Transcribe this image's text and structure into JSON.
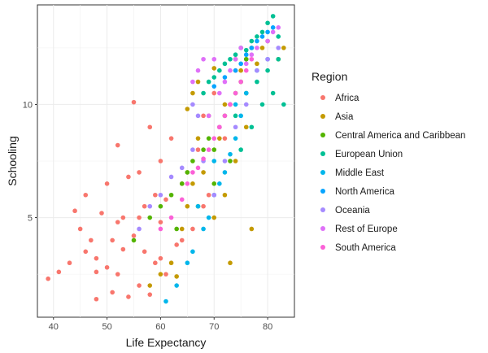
{
  "chart_data": {
    "type": "scatter",
    "xlabel": "Life Expectancy",
    "ylabel": "Schooling",
    "xlim": [
      37,
      85
    ],
    "ylim": [
      0.6,
      14.4
    ],
    "xticks": [
      40,
      50,
      60,
      70,
      80
    ],
    "yticks": [
      5,
      10
    ],
    "grid": true,
    "legend": {
      "title": "Region",
      "position": "right"
    },
    "series": [
      {
        "name": "Africa",
        "color": "#F8766D",
        "points": [
          [
            39,
            2.3
          ],
          [
            41,
            2.6
          ],
          [
            43,
            3.0
          ],
          [
            44,
            5.3
          ],
          [
            45,
            4.5
          ],
          [
            46,
            6.0
          ],
          [
            46,
            3.5
          ],
          [
            47,
            4.0
          ],
          [
            48,
            3.2
          ],
          [
            48,
            1.4
          ],
          [
            49,
            5.2
          ],
          [
            50,
            2.8
          ],
          [
            50,
            6.5
          ],
          [
            51,
            4.0
          ],
          [
            51,
            1.7
          ],
          [
            52,
            8.2
          ],
          [
            52,
            2.5
          ],
          [
            53,
            5.0
          ],
          [
            53,
            3.6
          ],
          [
            54,
            1.5
          ],
          [
            54,
            6.8
          ],
          [
            55,
            10.1
          ],
          [
            55,
            4.2
          ],
          [
            56,
            2.0
          ],
          [
            56,
            7.0
          ],
          [
            57,
            3.5
          ],
          [
            57,
            5.5
          ],
          [
            58,
            9.0
          ],
          [
            58,
            1.6
          ],
          [
            59,
            6.0
          ],
          [
            59,
            3.0
          ],
          [
            60,
            4.8
          ],
          [
            60,
            7.5
          ],
          [
            61,
            2.5
          ],
          [
            61,
            5.8
          ],
          [
            62,
            8.5
          ],
          [
            63,
            3.8
          ],
          [
            64,
            6.5
          ],
          [
            65,
            7.0
          ],
          [
            66,
            4.5
          ],
          [
            67,
            8.0
          ],
          [
            68,
            9.5
          ],
          [
            69,
            6.0
          ],
          [
            70,
            10.5
          ],
          [
            72,
            8.5
          ],
          [
            74,
            11.5
          ],
          [
            76,
            12.0
          ],
          [
            48,
            2.6
          ],
          [
            52,
            4.8
          ],
          [
            56,
            5.0
          ],
          [
            60,
            3.2
          ],
          [
            64,
            4.0
          ],
          [
            68,
            5.5
          ]
        ]
      },
      {
        "name": "Asia",
        "color": "#C49A00",
        "points": [
          [
            58,
            2.0
          ],
          [
            60,
            2.5
          ],
          [
            62,
            3.0
          ],
          [
            63,
            2.4
          ],
          [
            64,
            4.5
          ],
          [
            65,
            5.5
          ],
          [
            66,
            6.5
          ],
          [
            66,
            10.5
          ],
          [
            67,
            11.0
          ],
          [
            68,
            7.0
          ],
          [
            69,
            9.5
          ],
          [
            70,
            11.6
          ],
          [
            71,
            8.5
          ],
          [
            72,
            10.0
          ],
          [
            73,
            3.0
          ],
          [
            74,
            12.0
          ],
          [
            75,
            11.5
          ],
          [
            76,
            10.5
          ],
          [
            77,
            4.5
          ],
          [
            78,
            11.8
          ],
          [
            79,
            12.5
          ],
          [
            80,
            12.8
          ],
          [
            82,
            12.0
          ],
          [
            83,
            12.5
          ],
          [
            70,
            5.0
          ],
          [
            72,
            6.0
          ],
          [
            74,
            7.5
          ],
          [
            76,
            9.0
          ],
          [
            67,
            8.5
          ],
          [
            65,
            9.8
          ]
        ]
      },
      {
        "name": "Central America and Caribbean",
        "color": "#53B400",
        "points": [
          [
            55,
            4.0
          ],
          [
            58,
            5.0
          ],
          [
            60,
            5.5
          ],
          [
            62,
            6.0
          ],
          [
            64,
            6.5
          ],
          [
            65,
            7.0
          ],
          [
            66,
            7.5
          ],
          [
            68,
            8.0
          ],
          [
            69,
            8.5
          ],
          [
            70,
            8.0
          ],
          [
            71,
            9.0
          ],
          [
            72,
            9.5
          ],
          [
            73,
            10.0
          ],
          [
            74,
            10.5
          ],
          [
            75,
            11.0
          ],
          [
            76,
            12.0
          ],
          [
            77,
            12.5
          ],
          [
            63,
            4.5
          ],
          [
            67,
            5.5
          ],
          [
            70,
            6.5
          ],
          [
            73,
            7.5
          ]
        ]
      },
      {
        "name": "European Union",
        "color": "#00C094",
        "points": [
          [
            68,
            10.5
          ],
          [
            69,
            11.0
          ],
          [
            70,
            11.2
          ],
          [
            71,
            11.5
          ],
          [
            72,
            11.8
          ],
          [
            73,
            12.0
          ],
          [
            74,
            12.2
          ],
          [
            75,
            12.5
          ],
          [
            76,
            12.4
          ],
          [
            77,
            12.8
          ],
          [
            78,
            13.0
          ],
          [
            79,
            13.2
          ],
          [
            80,
            13.6
          ],
          [
            81,
            13.9
          ],
          [
            82,
            13.0
          ],
          [
            74,
            9.5
          ],
          [
            76,
            10.5
          ],
          [
            78,
            11.0
          ],
          [
            80,
            11.5
          ],
          [
            82,
            12.0
          ],
          [
            77,
            9.0
          ],
          [
            79,
            10.0
          ],
          [
            81,
            10.5
          ],
          [
            83,
            10.0
          ],
          [
            75,
            8.0
          ]
        ]
      },
      {
        "name": "Middle East",
        "color": "#00B6EB",
        "points": [
          [
            61,
            1.3
          ],
          [
            63,
            2.0
          ],
          [
            65,
            3.0
          ],
          [
            66,
            3.5
          ],
          [
            68,
            4.5
          ],
          [
            69,
            5.0
          ],
          [
            70,
            6.0
          ],
          [
            71,
            6.5
          ],
          [
            72,
            7.0
          ],
          [
            73,
            7.8
          ],
          [
            74,
            8.5
          ],
          [
            75,
            9.5
          ],
          [
            76,
            10.5
          ],
          [
            78,
            11.5
          ],
          [
            80,
            12.0
          ],
          [
            67,
            5.5
          ],
          [
            70,
            7.5
          ],
          [
            74,
            10.0
          ]
        ]
      },
      {
        "name": "North America",
        "color": "#06A4FF",
        "points": [
          [
            70,
            10.8
          ],
          [
            72,
            11.2
          ],
          [
            74,
            11.5
          ],
          [
            75,
            11.8
          ],
          [
            76,
            12.2
          ],
          [
            77,
            12.5
          ],
          [
            78,
            12.8
          ],
          [
            79,
            13.0
          ],
          [
            80,
            13.2
          ],
          [
            81,
            13.4
          ]
        ]
      },
      {
        "name": "Oceania",
        "color": "#A58AFF",
        "points": [
          [
            56,
            4.5
          ],
          [
            58,
            5.5
          ],
          [
            60,
            6.0
          ],
          [
            62,
            6.8
          ],
          [
            64,
            7.2
          ],
          [
            66,
            8.0
          ],
          [
            66,
            10.0
          ],
          [
            67,
            9.5
          ],
          [
            68,
            7.5
          ],
          [
            70,
            6.0
          ],
          [
            72,
            7.5
          ],
          [
            74,
            9.0
          ],
          [
            76,
            10.0
          ],
          [
            78,
            11.5
          ],
          [
            80,
            12.0
          ],
          [
            82,
            12.5
          ]
        ]
      },
      {
        "name": "Rest of Europe",
        "color": "#DF70F8",
        "points": [
          [
            66,
            11.0
          ],
          [
            67,
            11.5
          ],
          [
            68,
            12.0
          ],
          [
            70,
            12.0
          ],
          [
            71,
            10.5
          ],
          [
            72,
            11.0
          ],
          [
            73,
            11.5
          ],
          [
            74,
            12.0
          ],
          [
            75,
            12.5
          ],
          [
            76,
            11.8
          ],
          [
            77,
            12.2
          ],
          [
            78,
            12.5
          ],
          [
            80,
            12.8
          ],
          [
            81,
            13.2
          ],
          [
            82,
            13.4
          ],
          [
            69,
            9.5
          ],
          [
            71,
            9.0
          ],
          [
            73,
            10.0
          ]
        ]
      },
      {
        "name": "South America",
        "color": "#FB61D7",
        "points": [
          [
            60,
            4.5
          ],
          [
            62,
            5.0
          ],
          [
            64,
            5.8
          ],
          [
            65,
            6.5
          ],
          [
            66,
            7.0
          ],
          [
            67,
            7.2
          ],
          [
            68,
            7.6
          ],
          [
            69,
            8.0
          ],
          [
            70,
            8.5
          ],
          [
            71,
            9.0
          ],
          [
            72,
            9.5
          ],
          [
            73,
            10.0
          ],
          [
            74,
            10.5
          ],
          [
            75,
            11.0
          ],
          [
            76,
            11.5
          ],
          [
            77,
            12.0
          ]
        ]
      }
    ]
  }
}
